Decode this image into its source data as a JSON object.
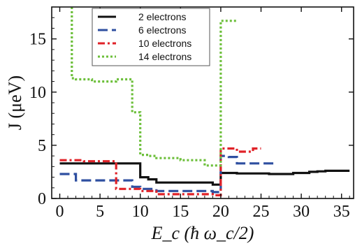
{
  "chart_data": {
    "type": "line",
    "title": "",
    "xlabel": "E_c (ħ ω_c/2)",
    "ylabel": "J (μeV)",
    "xlim": [
      -1,
      36.5
    ],
    "ylim": [
      0,
      18
    ],
    "xticks": [
      0,
      5,
      10,
      15,
      20,
      25,
      30,
      35
    ],
    "yticks": [
      0,
      5,
      10,
      15
    ],
    "grid": false,
    "legend_position": "top-left",
    "series": [
      {
        "name": "2 electrons",
        "color": "#111111",
        "dash": "solid",
        "x": [
          0,
          10,
          10,
          11,
          11,
          12,
          12,
          19,
          19,
          20,
          20,
          22,
          22,
          26,
          26,
          29,
          29,
          31,
          31,
          32,
          32,
          33,
          33,
          36
        ],
        "y": [
          3.3,
          3.3,
          2.0,
          2.0,
          1.8,
          1.8,
          1.5,
          1.5,
          1.3,
          1.3,
          2.4,
          2.4,
          2.35,
          2.35,
          2.3,
          2.3,
          2.4,
          2.4,
          2.5,
          2.5,
          2.55,
          2.55,
          2.6,
          2.6
        ]
      },
      {
        "name": "6 electrons",
        "color": "#2e4fa0",
        "dash": "dashed",
        "x": [
          0,
          2,
          2,
          9,
          9,
          10,
          10,
          12,
          12,
          19,
          19,
          20,
          20,
          21,
          21,
          22,
          22,
          27
        ],
        "y": [
          2.3,
          2.3,
          1.7,
          1.7,
          1.1,
          1.1,
          0.9,
          0.9,
          0.7,
          0.7,
          0.6,
          0.6,
          4.0,
          4.0,
          3.9,
          3.9,
          3.3,
          3.3
        ]
      },
      {
        "name": "10 electrons",
        "color": "#e02228",
        "dash": "dashdot",
        "x": [
          0,
          3,
          3,
          7,
          7,
          10,
          10,
          12,
          12,
          19,
          19,
          20,
          20,
          22,
          22,
          24,
          24,
          25
        ],
        "y": [
          3.6,
          3.6,
          3.5,
          3.5,
          0.9,
          0.9,
          0.7,
          0.7,
          0.4,
          0.4,
          0.3,
          0.3,
          4.7,
          4.7,
          4.4,
          4.4,
          4.7,
          4.7
        ]
      },
      {
        "name": "14 electrons",
        "color": "#6cbf3a",
        "dash": "dotted",
        "x": [
          1.5,
          1.5,
          2,
          2,
          4,
          4,
          7,
          7,
          9,
          9,
          10,
          10,
          11,
          11,
          12,
          12,
          15,
          15,
          18,
          18,
          20,
          20,
          22
        ],
        "y": [
          18,
          11.3,
          11.3,
          11.2,
          11.2,
          11.0,
          11.0,
          11.2,
          11.2,
          8.1,
          8.1,
          4.1,
          4.1,
          4.0,
          4.0,
          3.8,
          3.8,
          3.6,
          3.6,
          3.1,
          3.1,
          16.7,
          16.7
        ]
      }
    ]
  }
}
